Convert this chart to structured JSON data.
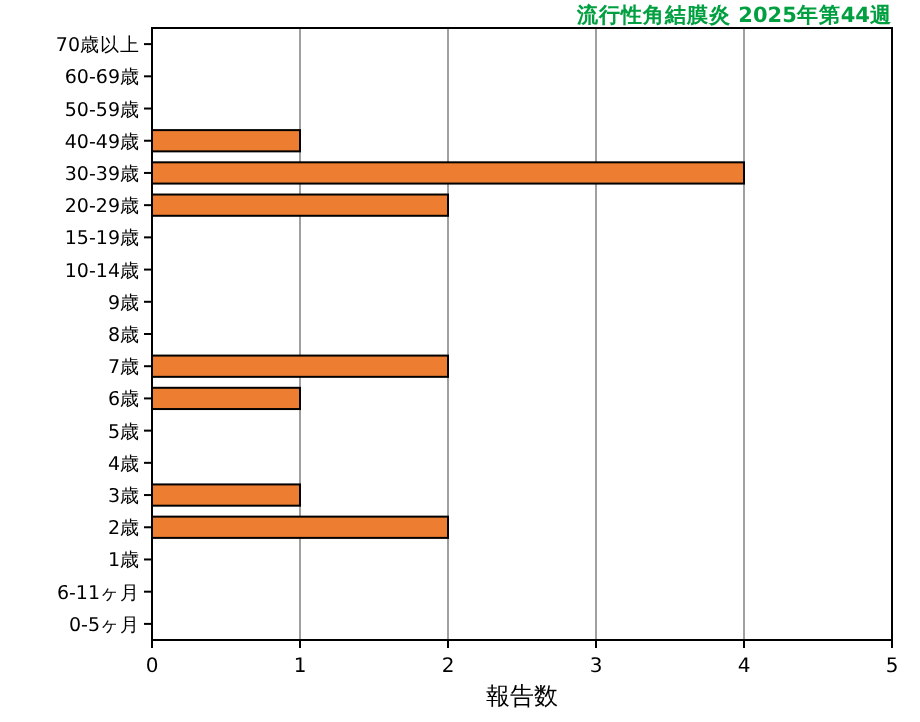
{
  "chart_data": {
    "type": "bar",
    "orientation": "horizontal",
    "title": "流行性角結膜炎 2025年第44週",
    "xlabel": "報告数",
    "categories": [
      "70歳以上",
      "60-69歳",
      "50-59歳",
      "40-49歳",
      "30-39歳",
      "20-29歳",
      "15-19歳",
      "10-14歳",
      "9歳",
      "8歳",
      "7歳",
      "6歳",
      "5歳",
      "4歳",
      "3歳",
      "2歳",
      "1歳",
      "6-11ヶ月",
      "0-5ヶ月"
    ],
    "values": [
      0,
      0,
      0,
      1,
      4,
      2,
      0,
      0,
      0,
      0,
      2,
      1,
      0,
      0,
      1,
      2,
      0,
      0,
      0
    ],
    "color": "#ed7d31",
    "xlim": [
      0,
      5
    ],
    "xticks": [
      0,
      1,
      2,
      3,
      4,
      5
    ],
    "grid": "x"
  }
}
